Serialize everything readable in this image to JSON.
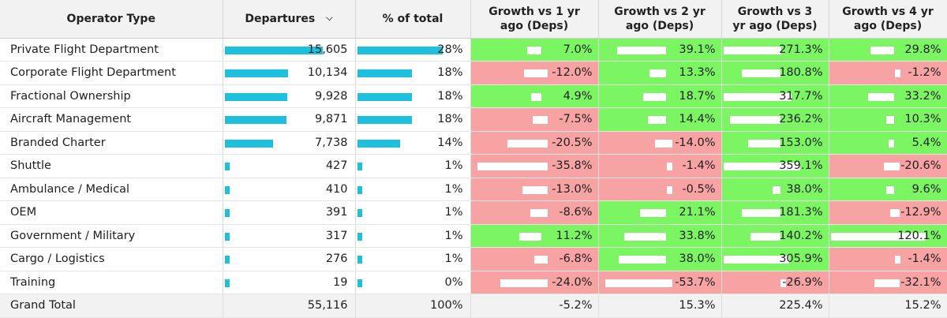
{
  "headers": {
    "operator_type": "Operator Type",
    "departures": "Departures",
    "pct_total": "% of total",
    "g1": [
      "Growth vs 1 yr",
      "ago (Deps)"
    ],
    "g2": [
      "Growth vs 2 yr",
      "ago (Deps)"
    ],
    "g3": [
      "Growth vs 3",
      "yr ago (Deps)"
    ],
    "g4": [
      "Growth vs 4 yr",
      "ago (Deps)"
    ]
  },
  "rows": [
    {
      "label": "Private Flight Department",
      "departures": "15,605",
      "pct": "28%",
      "g1": "7.0%",
      "g2": "39.1%",
      "g3": "271.3%",
      "g4": "29.8%"
    },
    {
      "label": "Corporate Flight Department",
      "departures": "10,134",
      "pct": "18%",
      "g1": "-12.0%",
      "g2": "13.3%",
      "g3": "180.8%",
      "g4": "-1.2%"
    },
    {
      "label": "Fractional Ownership",
      "departures": "9,928",
      "pct": "18%",
      "g1": "4.9%",
      "g2": "18.7%",
      "g3": "317.7%",
      "g4": "33.2%"
    },
    {
      "label": "Aircraft Management",
      "departures": "9,871",
      "pct": "18%",
      "g1": "-7.5%",
      "g2": "14.4%",
      "g3": "236.2%",
      "g4": "10.3%"
    },
    {
      "label": "Branded Charter",
      "departures": "7,738",
      "pct": "14%",
      "g1": "-20.5%",
      "g2": "-14.0%",
      "g3": "153.0%",
      "g4": "5.4%"
    },
    {
      "label": "Shuttle",
      "departures": "427",
      "pct": "1%",
      "g1": "-35.8%",
      "g2": "-1.4%",
      "g3": "359.1%",
      "g4": "-20.6%"
    },
    {
      "label": "Ambulance / Medical",
      "departures": "410",
      "pct": "1%",
      "g1": "-13.0%",
      "g2": "-0.5%",
      "g3": "38.0%",
      "g4": "9.6%"
    },
    {
      "label": "OEM",
      "departures": "391",
      "pct": "1%",
      "g1": "-8.6%",
      "g2": "21.1%",
      "g3": "181.3%",
      "g4": "-12.9%"
    },
    {
      "label": "Government / Military",
      "departures": "317",
      "pct": "1%",
      "g1": "11.2%",
      "g2": "33.8%",
      "g3": "140.2%",
      "g4": "120.1%"
    },
    {
      "label": "Cargo / Logistics",
      "departures": "276",
      "pct": "1%",
      "g1": "-6.8%",
      "g2": "38.0%",
      "g3": "305.9%",
      "g4": "-1.4%"
    },
    {
      "label": "Training",
      "departures": "19",
      "pct": "0%",
      "g1": "-24.0%",
      "g2": "-53.7%",
      "g3": "-26.9%",
      "g4": "-32.1%"
    }
  ],
  "total": {
    "label": "Grand Total",
    "departures": "55,116",
    "pct": "100%",
    "g1": "-5.2%",
    "g2": "15.3%",
    "g3": "225.4%",
    "g4": "15.2%"
  },
  "colors": {
    "positive": "#7cf562",
    "negative": "#f7a3a3",
    "bar": "#1ec0dd",
    "header_bg": "#f2f2f2"
  },
  "icons": {
    "sort": "chevron-down-icon"
  }
}
